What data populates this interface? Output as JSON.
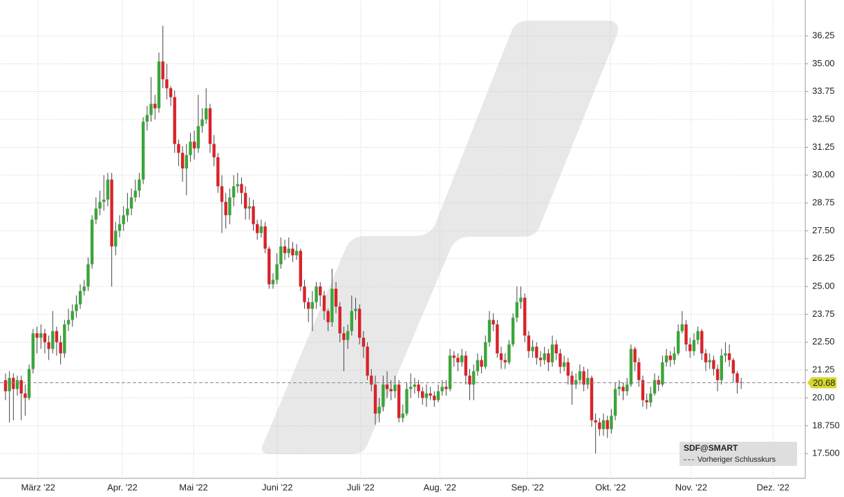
{
  "chart_data": {
    "type": "candlestick",
    "series": [
      {
        "name": "SDF@SMART",
        "up_color": "#3aa53a",
        "down_color": "#d8232a",
        "open": [
          20.8,
          20.3,
          20.9,
          20.4,
          20.8,
          20.2,
          20.0,
          21.3,
          22.9,
          22.7,
          22.9,
          22.5,
          22.2,
          23.0,
          22.5,
          22.0,
          23.3,
          23.5,
          23.9,
          24.2,
          24.8,
          25.0,
          26.0,
          28.0,
          28.5,
          28.8,
          28.9,
          29.8,
          26.8,
          27.5,
          27.8,
          28.2,
          28.5,
          29.0,
          29.3,
          29.8,
          32.4,
          32.7,
          33.2,
          33.0,
          35.1,
          34.3,
          33.9,
          33.5,
          31.4,
          31.0,
          30.3,
          30.9,
          31.5,
          31.2,
          32.2,
          32.5,
          33.0,
          31.4,
          30.8,
          29.5,
          28.8,
          28.2,
          29.0,
          29.5,
          29.6,
          29.2,
          28.5,
          28.6,
          27.8,
          27.4,
          27.7,
          26.7,
          25.1,
          25.3,
          26.0,
          26.8,
          26.5,
          26.7,
          26.4,
          26.6,
          25.0,
          24.3,
          24.0,
          24.3,
          25.0,
          24.6,
          23.9,
          23.4,
          24.9,
          24.1,
          22.9,
          22.6,
          23.0,
          23.9,
          24.0,
          22.7,
          22.3,
          21.0,
          20.6,
          19.3,
          19.6,
          20.6,
          20.4,
          20.3,
          20.6,
          19.1,
          19.3,
          20.4,
          20.5,
          20.6,
          20.3,
          20.0,
          20.2,
          20.1,
          19.9,
          20.3,
          20.5,
          20.4,
          21.9,
          21.8,
          21.6,
          21.9,
          21.0,
          20.6,
          21.2,
          21.7,
          21.4,
          22.5,
          23.5,
          23.3,
          22.0,
          21.7,
          21.6,
          22.4,
          23.6,
          24.3,
          24.5,
          22.8,
          22.1,
          22.3,
          21.8,
          21.7,
          22.0,
          21.6,
          22.4,
          22.0,
          21.4,
          21.6,
          21.0,
          20.6,
          20.8,
          21.2,
          20.6,
          20.9,
          19.0,
          18.9,
          18.6,
          19.0,
          18.6,
          19.2,
          20.4,
          20.5,
          20.3,
          20.6,
          22.2,
          21.6,
          20.8,
          19.9,
          19.8,
          20.2,
          20.8,
          20.6,
          21.6,
          21.9,
          21.7,
          22.0,
          23.0,
          23.3,
          22.4,
          22.1,
          22.6,
          23.0,
          22.0,
          21.6,
          21.7,
          21.3,
          20.8,
          21.9,
          22.0,
          21.7,
          21.1,
          20.7
        ],
        "high": [
          21.1,
          21.2,
          21.1,
          21.0,
          21.0,
          20.6,
          21.5,
          23.1,
          23.2,
          23.3,
          23.1,
          22.8,
          23.9,
          23.2,
          22.8,
          23.5,
          24.0,
          24.2,
          24.6,
          25.1,
          25.3,
          26.3,
          28.2,
          29.0,
          29.3,
          30.0,
          30.1,
          30.1,
          27.9,
          28.2,
          28.6,
          29.2,
          29.4,
          29.8,
          30.1,
          32.6,
          33.1,
          34.4,
          33.6,
          35.5,
          36.7,
          35.0,
          34.0,
          33.8,
          31.6,
          31.3,
          31.4,
          31.9,
          32.0,
          33.6,
          33.0,
          33.9,
          33.2,
          31.8,
          31.0,
          30.0,
          29.2,
          29.4,
          30.0,
          30.1,
          29.9,
          29.5,
          29.0,
          28.9,
          28.0,
          28.0,
          27.9,
          26.8,
          25.6,
          26.5,
          27.2,
          27.1,
          27.2,
          27.0,
          26.9,
          26.7,
          25.3,
          24.5,
          24.8,
          25.2,
          25.2,
          24.8,
          24.0,
          25.8,
          25.2,
          24.3,
          23.2,
          23.3,
          24.6,
          24.5,
          24.2,
          23.0,
          22.5,
          21.3,
          21.0,
          20.0,
          21.0,
          21.2,
          20.8,
          21.0,
          20.8,
          19.7,
          20.7,
          21.1,
          20.9,
          20.8,
          20.5,
          20.6,
          20.5,
          20.3,
          20.6,
          20.8,
          20.8,
          22.2,
          22.1,
          22.0,
          22.2,
          22.1,
          21.3,
          21.5,
          22.0,
          21.9,
          22.8,
          23.9,
          23.8,
          23.5,
          22.3,
          22.0,
          22.6,
          23.8,
          25.0,
          25.0,
          24.7,
          23.0,
          22.6,
          22.5,
          22.1,
          22.3,
          22.2,
          22.8,
          22.6,
          22.2,
          21.9,
          21.8,
          21.2,
          21.1,
          21.5,
          21.4,
          21.3,
          21.0,
          19.3,
          19.1,
          19.3,
          19.2,
          19.5,
          20.7,
          20.8,
          20.7,
          20.9,
          22.4,
          22.3,
          21.8,
          21.0,
          20.2,
          20.5,
          21.1,
          21.0,
          21.9,
          22.2,
          22.1,
          22.3,
          23.3,
          23.9,
          23.5,
          22.7,
          22.9,
          23.2,
          23.1,
          22.2,
          22.0,
          21.9,
          21.5,
          22.2,
          22.5,
          22.4,
          21.8,
          21.2,
          20.9
        ],
        "low": [
          19.9,
          18.9,
          19.0,
          20.1,
          19.0,
          19.2,
          19.9,
          21.1,
          22.0,
          22.2,
          22.0,
          21.7,
          22.0,
          21.9,
          21.5,
          21.8,
          23.0,
          23.2,
          23.6,
          24.0,
          24.6,
          24.8,
          25.8,
          27.8,
          28.2,
          28.4,
          28.6,
          25.0,
          26.4,
          27.2,
          27.5,
          27.9,
          28.2,
          28.8,
          29.0,
          29.6,
          32.0,
          32.4,
          32.5,
          32.8,
          33.9,
          33.4,
          33.1,
          31.0,
          30.4,
          29.7,
          29.1,
          30.6,
          30.7,
          31.0,
          31.9,
          32.3,
          31.0,
          30.4,
          29.2,
          27.4,
          27.6,
          27.8,
          28.6,
          29.2,
          28.7,
          28.0,
          28.0,
          27.5,
          27.1,
          27.2,
          26.5,
          24.9,
          24.9,
          25.1,
          25.8,
          26.2,
          26.3,
          26.1,
          26.2,
          24.8,
          24.0,
          23.4,
          23.0,
          24.0,
          24.1,
          23.5,
          23.0,
          23.2,
          23.8,
          22.5,
          21.2,
          22.2,
          22.8,
          23.5,
          22.4,
          21.8,
          20.8,
          20.3,
          18.8,
          18.9,
          19.4,
          20.0,
          19.9,
          20.0,
          18.9,
          18.9,
          19.2,
          20.0,
          20.2,
          20.0,
          19.7,
          19.6,
          19.9,
          19.6,
          19.8,
          20.1,
          20.1,
          20.3,
          21.4,
          21.2,
          21.4,
          20.6,
          19.9,
          19.9,
          21.0,
          21.1,
          21.3,
          22.3,
          23.0,
          21.8,
          21.3,
          21.3,
          21.5,
          22.3,
          23.4,
          24.0,
          22.5,
          21.8,
          21.8,
          21.5,
          21.4,
          21.5,
          21.2,
          21.4,
          21.7,
          21.1,
          21.2,
          20.6,
          19.7,
          20.4,
          20.6,
          20.3,
          20.4,
          18.7,
          17.5,
          18.3,
          18.3,
          18.2,
          18.4,
          19.0,
          20.1,
          19.9,
          20.1,
          20.5,
          21.2,
          20.5,
          19.6,
          19.5,
          19.6,
          20.1,
          20.3,
          20.5,
          21.4,
          21.4,
          21.5,
          21.9,
          22.9,
          22.1,
          21.8,
          21.9,
          22.4,
          21.7,
          21.2,
          21.3,
          21.0,
          20.3,
          20.6,
          21.6,
          21.4,
          20.7,
          20.2,
          20.4
        ],
        "close": [
          20.3,
          20.9,
          20.4,
          20.8,
          20.2,
          20.0,
          21.3,
          22.9,
          22.7,
          22.9,
          22.5,
          22.2,
          23.0,
          22.5,
          22.0,
          23.3,
          23.5,
          23.9,
          24.2,
          24.8,
          25.0,
          26.0,
          28.0,
          28.5,
          28.8,
          28.9,
          29.8,
          26.8,
          27.5,
          27.8,
          28.2,
          28.5,
          29.0,
          29.3,
          29.8,
          32.4,
          32.7,
          33.2,
          33.0,
          35.1,
          34.3,
          33.9,
          33.5,
          31.4,
          31.0,
          30.3,
          30.9,
          31.5,
          31.2,
          32.2,
          32.5,
          33.0,
          31.4,
          30.8,
          29.5,
          28.8,
          28.2,
          29.0,
          29.5,
          29.6,
          29.2,
          28.5,
          28.6,
          27.8,
          27.4,
          27.7,
          26.7,
          25.1,
          25.3,
          26.0,
          26.8,
          26.5,
          26.7,
          26.4,
          26.6,
          25.0,
          24.3,
          24.0,
          24.3,
          25.0,
          24.6,
          23.9,
          23.4,
          24.9,
          24.1,
          22.9,
          22.6,
          23.0,
          23.9,
          24.0,
          22.7,
          22.3,
          21.0,
          20.6,
          19.3,
          19.6,
          20.6,
          20.4,
          20.3,
          20.6,
          19.1,
          19.3,
          20.4,
          20.5,
          20.6,
          20.3,
          20.0,
          20.2,
          20.1,
          19.9,
          20.3,
          20.5,
          20.4,
          21.9,
          21.8,
          21.6,
          21.9,
          21.0,
          20.6,
          21.2,
          21.7,
          21.4,
          22.5,
          23.5,
          23.3,
          22.0,
          21.7,
          21.6,
          22.4,
          23.6,
          24.3,
          24.5,
          22.8,
          22.1,
          22.3,
          21.8,
          21.7,
          22.0,
          21.6,
          22.4,
          22.0,
          21.4,
          21.6,
          21.0,
          20.6,
          20.8,
          21.2,
          20.6,
          20.9,
          19.0,
          18.9,
          18.6,
          19.0,
          18.6,
          19.2,
          20.4,
          20.5,
          20.3,
          20.6,
          22.2,
          21.6,
          20.8,
          19.9,
          19.8,
          20.2,
          20.8,
          20.6,
          21.6,
          21.9,
          21.7,
          22.0,
          23.0,
          23.3,
          22.4,
          22.1,
          22.6,
          23.0,
          22.0,
          21.6,
          21.7,
          21.3,
          20.8,
          21.9,
          22.0,
          21.7,
          21.1,
          20.7,
          20.68
        ]
      }
    ],
    "reference_line": {
      "name": "Vorheriger Schlusskurs",
      "value": 20.68,
      "color": "#888888"
    },
    "xlim": [
      -1.4,
      203.3
    ],
    "xticks": [
      {
        "value": 8.3,
        "label": "März '22"
      },
      {
        "value": 29.7,
        "label": "Apr. '22"
      },
      {
        "value": 47.8,
        "label": "Mai '22"
      },
      {
        "value": 69.1,
        "label": "Juni '22"
      },
      {
        "value": 90.3,
        "label": "Juli '22"
      },
      {
        "value": 110.4,
        "label": "Aug. '22"
      },
      {
        "value": 132.7,
        "label": "Sep. '22"
      },
      {
        "value": 153.8,
        "label": "Okt. '22"
      },
      {
        "value": 174.3,
        "label": "Nov. '22"
      },
      {
        "value": 195.1,
        "label": "Dez. '22"
      }
    ],
    "ylim": [
      16.39,
      37.86
    ],
    "yticks": [
      {
        "value": 17.5,
        "label": "17.500"
      },
      {
        "value": 18.75,
        "label": "18.750"
      },
      {
        "value": 20,
        "label": "20.00"
      },
      21.25,
      {
        "value": 22.5,
        "label": "22.50"
      },
      23.75,
      {
        "value": 25,
        "label": "25.00"
      },
      26.25,
      {
        "value": 27.5,
        "label": "27.50"
      },
      28.75,
      {
        "value": 30,
        "label": "30.00"
      },
      31.25,
      {
        "value": 32.5,
        "label": "32.50"
      },
      33.75,
      {
        "value": 35,
        "label": "35.00"
      },
      36.25
    ],
    "grid": true
  }
}
